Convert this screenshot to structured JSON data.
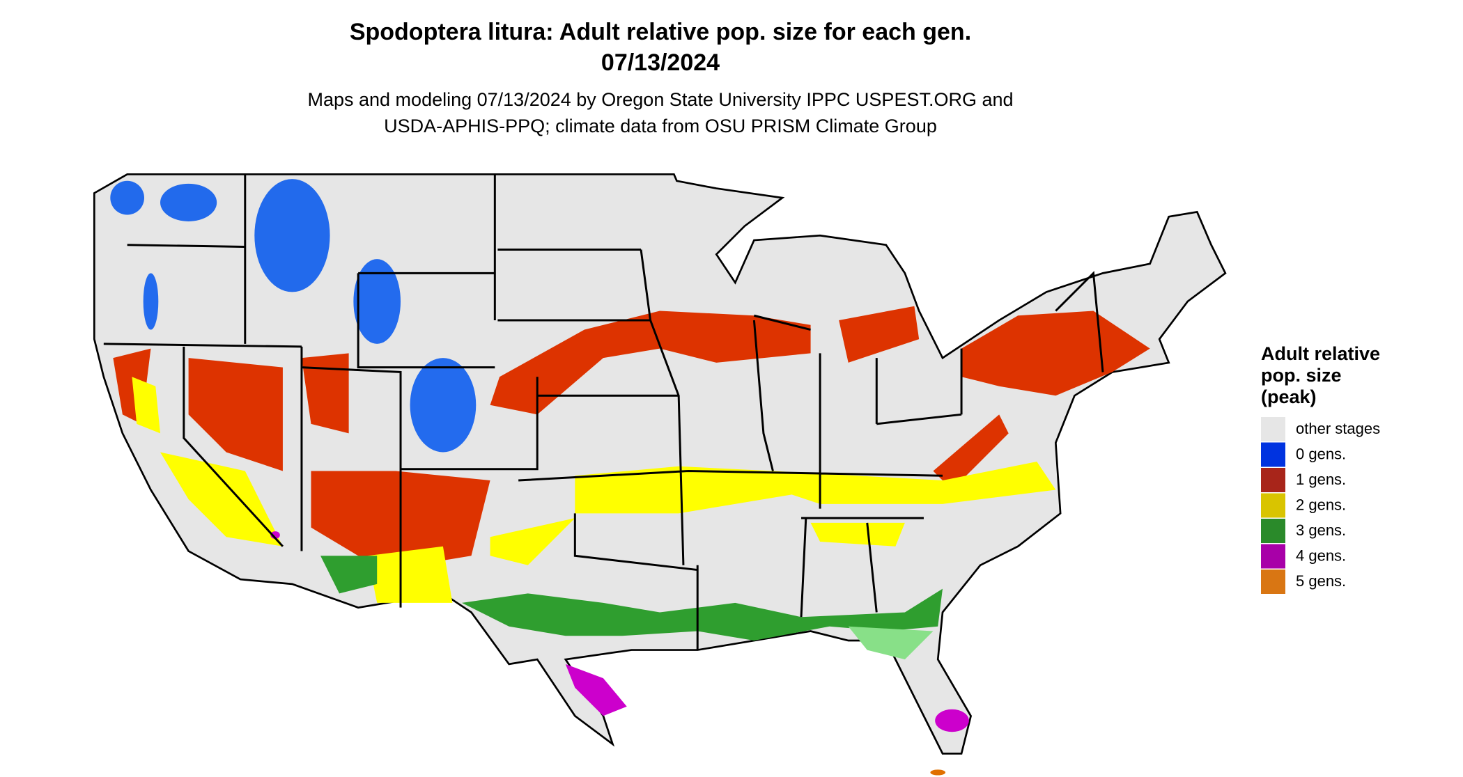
{
  "header": {
    "title": [
      "Spodoptera litura: Adult relative pop. size for each gen.",
      "07/13/2024"
    ],
    "subtitle": [
      "Maps and modeling 07/13/2024 by Oregon State University IPPC USPEST.ORG and",
      "USDA-APHIS-PPQ; climate data from OSU PRISM Climate Group"
    ]
  },
  "legend": {
    "title": [
      "Adult relative",
      "pop. size",
      "(peak)"
    ],
    "items": [
      {
        "label": "other stages",
        "color": "#e6e6e6"
      },
      {
        "label": "0 gens.",
        "color": "#0033e0"
      },
      {
        "label": "1 gens.",
        "color": "#a8251a"
      },
      {
        "label": "2 gens.",
        "color": "#d9c400"
      },
      {
        "label": "3 gens.",
        "color": "#2a8a2a"
      },
      {
        "label": "4 gens.",
        "color": "#a800a8"
      },
      {
        "label": "5 gens.",
        "color": "#d97613"
      }
    ]
  }
}
